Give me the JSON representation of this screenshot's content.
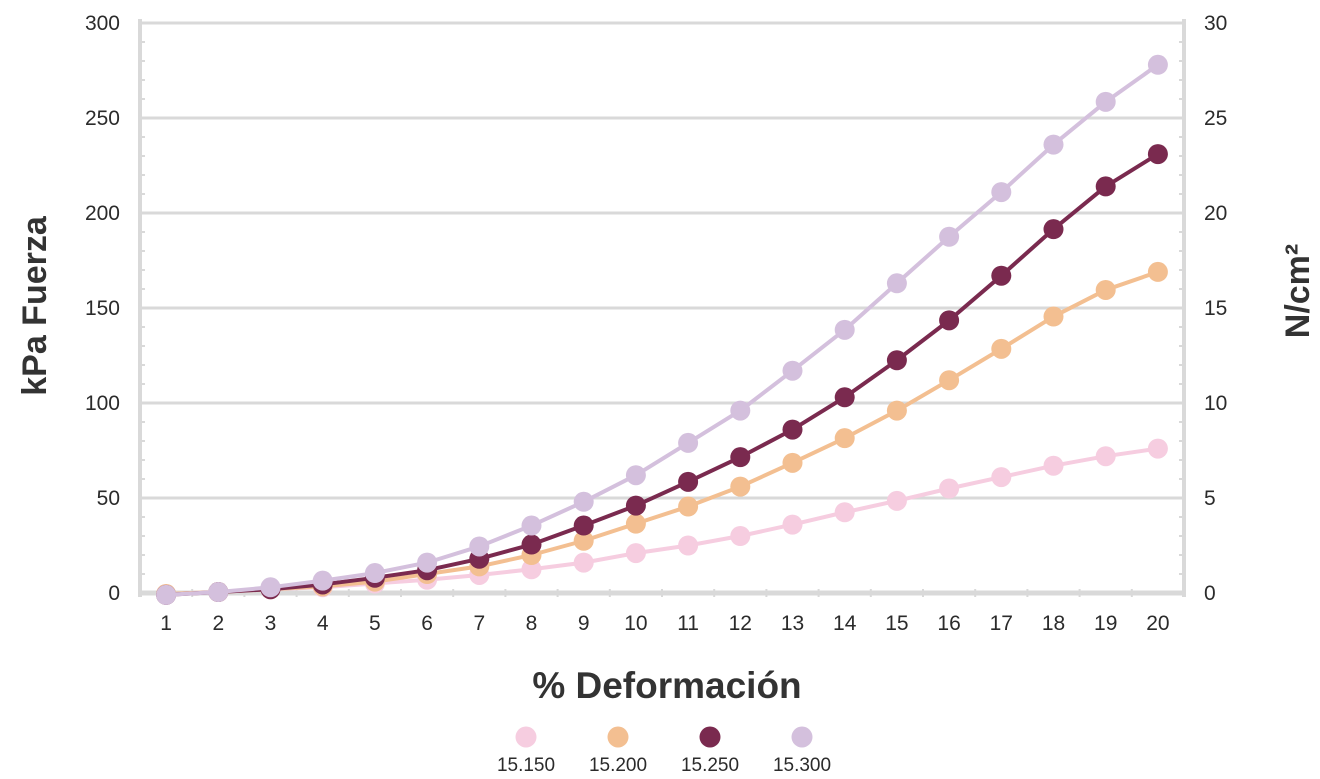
{
  "chart_data": {
    "type": "line",
    "xlabel": "% Deformación",
    "ylabel": "kPa Fuerza",
    "ylabel_right": "N/cm²",
    "x": [
      1,
      2,
      3,
      4,
      5,
      6,
      7,
      8,
      9,
      10,
      11,
      12,
      13,
      14,
      15,
      16,
      17,
      18,
      19,
      20
    ],
    "ylim": [
      0,
      300
    ],
    "yticks": [
      0,
      50,
      100,
      150,
      200,
      250,
      300
    ],
    "ylim_right": [
      0,
      30
    ],
    "yticks_right": [
      0,
      5,
      10,
      15,
      20,
      25,
      30
    ],
    "grid": true,
    "legend_position": "bottom",
    "series": [
      {
        "name": "15.150",
        "color": "#f6cde0",
        "values": [
          -0.5,
          0.5,
          2,
          3,
          5,
          7,
          9.5,
          12.5,
          16,
          21,
          25,
          30,
          36,
          42.5,
          48.5,
          55,
          61,
          67,
          72,
          76
        ]
      },
      {
        "name": "15.200",
        "color": "#f3bf91",
        "values": [
          -0.5,
          0.5,
          2,
          3.5,
          6,
          10,
          14,
          20,
          27.5,
          36.5,
          45.5,
          56,
          68.5,
          81.5,
          96,
          112,
          128.5,
          145.5,
          159.5,
          169
        ]
      },
      {
        "name": "15.250",
        "color": "#7a2a4f",
        "values": [
          -1,
          0.5,
          2,
          4.5,
          8,
          12,
          18,
          25.5,
          35.5,
          46,
          58.5,
          71.5,
          86,
          103,
          122.5,
          143.5,
          167,
          191.5,
          214,
          231
        ]
      },
      {
        "name": "15.300",
        "color": "#d4c0dd",
        "values": [
          -1,
          0.5,
          3,
          6.5,
          10.5,
          16,
          24.5,
          35.5,
          48,
          62,
          79,
          96,
          117,
          138.5,
          163,
          187.5,
          211,
          236,
          258.5,
          278
        ]
      }
    ]
  }
}
